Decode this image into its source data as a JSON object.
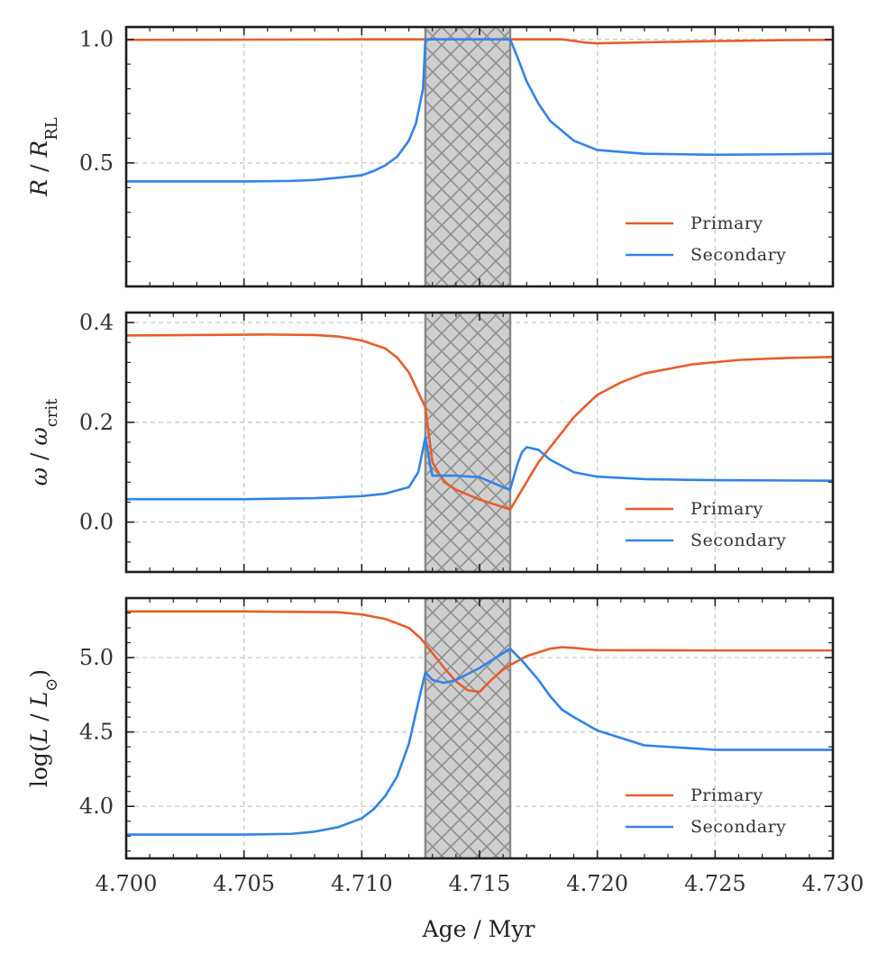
{
  "chart_data": {
    "type": "line",
    "xlabel": "Age / Myr",
    "xlim": [
      4.7,
      4.73
    ],
    "xticks": [
      4.7,
      4.705,
      4.71,
      4.715,
      4.72,
      4.725,
      4.73
    ],
    "xtick_labels": [
      "4.700",
      "4.705",
      "4.710",
      "4.715",
      "4.720",
      "4.725",
      "4.730"
    ],
    "shaded_interval": [
      4.7127,
      4.7163
    ],
    "panels": [
      {
        "ylabel": "R / R_RL",
        "ylim": [
          0.0,
          1.05
        ],
        "yticks": [
          0.5,
          1.0
        ],
        "ytick_labels": [
          "0.5",
          "1.0"
        ],
        "legend": "lower right",
        "series": [
          {
            "name": "Primary",
            "color": "#e85d2a",
            "x": [
              4.7,
              4.705,
              4.71,
              4.712,
              4.7127,
              4.7163,
              4.7185,
              4.719,
              4.7195,
              4.72,
              4.722,
              4.725,
              4.728,
              4.73
            ],
            "y": [
              0.998,
              0.999,
              1.0,
              1.0,
              1.0,
              1.0,
              1.0,
              0.994,
              0.987,
              0.984,
              0.988,
              0.993,
              0.997,
              0.998
            ]
          },
          {
            "name": "Secondary",
            "color": "#3283e8",
            "x": [
              4.7,
              4.705,
              4.707,
              4.708,
              4.709,
              4.71,
              4.7105,
              4.711,
              4.7115,
              4.712,
              4.7123,
              4.7126,
              4.7127,
              4.7163,
              4.7166,
              4.717,
              4.7175,
              4.718,
              4.719,
              4.72,
              4.722,
              4.725,
              4.728,
              4.73
            ],
            "y": [
              0.425,
              0.425,
              0.427,
              0.431,
              0.44,
              0.45,
              0.467,
              0.49,
              0.525,
              0.59,
              0.66,
              0.8,
              1.0,
              1.0,
              0.93,
              0.83,
              0.74,
              0.67,
              0.59,
              0.552,
              0.537,
              0.533,
              0.535,
              0.537
            ]
          }
        ]
      },
      {
        "ylabel": "ω / ω_crit",
        "ylim": [
          -0.1,
          0.42
        ],
        "yticks": [
          0.0,
          0.2,
          0.4
        ],
        "ytick_labels": [
          "0.0",
          "0.2",
          "0.4"
        ],
        "legend": "lower right",
        "series": [
          {
            "name": "Primary",
            "color": "#e85d2a",
            "x": [
              4.7,
              4.703,
              4.706,
              4.708,
              4.709,
              4.71,
              4.711,
              4.7115,
              4.712,
              4.7125,
              4.7127,
              4.713,
              4.7135,
              4.714,
              4.715,
              4.716,
              4.7163,
              4.7175,
              4.719,
              4.7195,
              4.72,
              4.721,
              4.722,
              4.724,
              4.726,
              4.728,
              4.73
            ],
            "y": [
              0.374,
              0.375,
              0.376,
              0.375,
              0.372,
              0.364,
              0.348,
              0.33,
              0.3,
              0.25,
              0.23,
              0.12,
              0.08,
              0.065,
              0.045,
              0.03,
              0.025,
              0.12,
              0.21,
              0.233,
              0.255,
              0.28,
              0.298,
              0.316,
              0.325,
              0.329,
              0.331
            ]
          },
          {
            "name": "Secondary",
            "color": "#3283e8",
            "x": [
              4.7,
              4.705,
              4.708,
              4.71,
              4.711,
              4.712,
              4.7124,
              4.7127,
              4.7129,
              4.713,
              4.714,
              4.715,
              4.716,
              4.7163,
              4.7166,
              4.7168,
              4.717,
              4.7175,
              4.718,
              4.719,
              4.72,
              4.722,
              4.725,
              4.73
            ],
            "y": [
              0.046,
              0.046,
              0.048,
              0.052,
              0.057,
              0.07,
              0.1,
              0.17,
              0.115,
              0.093,
              0.093,
              0.09,
              0.07,
              0.065,
              0.115,
              0.14,
              0.15,
              0.145,
              0.125,
              0.1,
              0.091,
              0.086,
              0.084,
              0.083
            ]
          }
        ]
      },
      {
        "ylabel": "log(L / L_⊙)",
        "ylim": [
          3.65,
          5.4
        ],
        "yticks": [
          4.0,
          4.5,
          5.0
        ],
        "ytick_labels": [
          "4.0",
          "4.5",
          "5.0"
        ],
        "legend": "lower right",
        "series": [
          {
            "name": "Primary",
            "color": "#e85d2a",
            "x": [
              4.7,
              4.705,
              4.709,
              4.71,
              4.711,
              4.712,
              4.7125,
              4.713,
              4.7135,
              4.714,
              4.7145,
              4.715,
              4.7155,
              4.716,
              4.7163,
              4.717,
              4.718,
              4.7185,
              4.719,
              4.72,
              4.725,
              4.73
            ],
            "y": [
              5.31,
              5.31,
              5.305,
              5.29,
              5.26,
              5.2,
              5.13,
              5.03,
              4.93,
              4.84,
              4.78,
              4.77,
              4.85,
              4.92,
              4.95,
              5.01,
              5.06,
              5.07,
              5.065,
              5.05,
              5.048,
              5.048
            ]
          },
          {
            "name": "Secondary",
            "color": "#3283e8",
            "x": [
              4.7,
              4.705,
              4.707,
              4.708,
              4.709,
              4.71,
              4.7105,
              4.711,
              4.7115,
              4.712,
              4.7124,
              4.7127,
              4.713,
              4.7135,
              4.714,
              4.715,
              4.7158,
              4.7163,
              4.7168,
              4.7175,
              4.718,
              4.7185,
              4.719,
              4.72,
              4.722,
              4.725,
              4.73
            ],
            "y": [
              3.81,
              3.81,
              3.815,
              3.83,
              3.86,
              3.92,
              3.98,
              4.07,
              4.2,
              4.42,
              4.7,
              4.9,
              4.85,
              4.83,
              4.85,
              4.93,
              5.01,
              5.06,
              4.98,
              4.85,
              4.74,
              4.65,
              4.6,
              4.51,
              4.41,
              4.38,
              4.38
            ]
          }
        ]
      }
    ]
  }
}
